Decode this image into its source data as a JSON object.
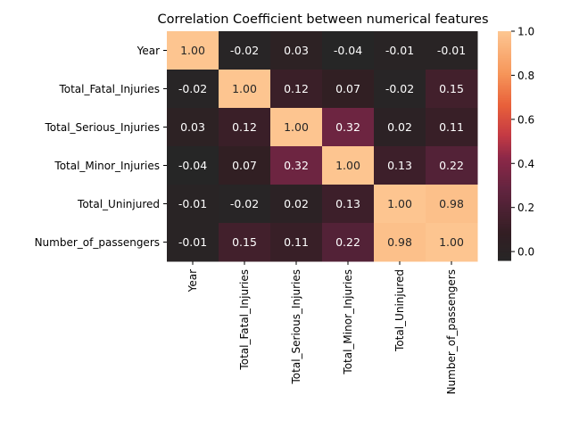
{
  "chart_data": {
    "type": "heatmap",
    "title": "Correlation Coefficient between numerical features",
    "labels": [
      "Year",
      "Total_Fatal_Injuries",
      "Total_Serious_Injuries",
      "Total_Minor_Injuries",
      "Total_Uninjured",
      "Number_of_passengers"
    ],
    "matrix": [
      [
        1.0,
        -0.02,
        0.03,
        -0.04,
        -0.01,
        -0.01
      ],
      [
        -0.02,
        1.0,
        0.12,
        0.07,
        -0.02,
        0.15
      ],
      [
        0.03,
        0.12,
        1.0,
        0.32,
        0.02,
        0.11
      ],
      [
        -0.04,
        0.07,
        0.32,
        1.0,
        0.13,
        0.22
      ],
      [
        -0.01,
        -0.02,
        0.02,
        0.13,
        1.0,
        0.98
      ],
      [
        -0.01,
        0.15,
        0.11,
        0.22,
        0.98,
        1.0
      ]
    ],
    "colorbar": {
      "ticks": [
        "0.0",
        "0.2",
        "0.4",
        "0.6",
        "0.8",
        "1.0"
      ],
      "range": [
        -0.04,
        1.0
      ]
    },
    "colors": {
      "low": "#262626",
      "mid": "#7a2a4a",
      "high": "#fdc590"
    }
  }
}
